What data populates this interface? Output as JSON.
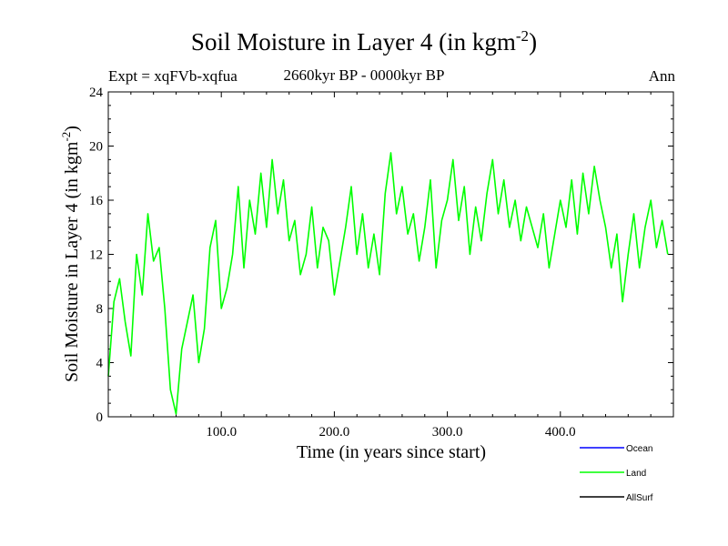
{
  "chart_data": {
    "type": "line",
    "title": "Soil Moisture in Layer 4 (in kgm",
    "title_superscript": "-2",
    "title_close": ")",
    "subtitle": "2660kyr BP - 0000kyr BP",
    "experiment_label": "Expt = xqFVb-xqfua",
    "season_label": "Ann",
    "xlabel": "Time (in years since start)",
    "ylabel": "Soil Moisture in Layer 4 (in kgm",
    "ylabel_superscript": "-2",
    "ylabel_close": ")",
    "xlim": [
      0,
      500
    ],
    "ylim": [
      0,
      24
    ],
    "x_ticks": [
      100,
      200,
      300,
      400
    ],
    "x_tick_labels": [
      "100.0",
      "200.0",
      "300.0",
      "400.0"
    ],
    "y_ticks": [
      0,
      4,
      8,
      12,
      16,
      20,
      24
    ],
    "y_tick_labels": [
      "0",
      "4",
      "8",
      "12",
      "16",
      "20",
      "24"
    ],
    "legend": [
      {
        "name": "Ocean",
        "color": "#0000ff"
      },
      {
        "name": "Land",
        "color": "#00ff00"
      },
      {
        "name": "AllSurf",
        "color": "#000000"
      }
    ],
    "series": [
      {
        "name": "Land",
        "color": "#00ff00",
        "x_start": 0,
        "x_step": 5,
        "values": [
          3.0,
          8.5,
          10.2,
          7.0,
          4.5,
          12.0,
          9.0,
          15.0,
          11.5,
          12.5,
          8.0,
          2.0,
          0.2,
          5.0,
          7.0,
          9.0,
          4.0,
          6.5,
          12.5,
          14.5,
          8.0,
          9.5,
          12.0,
          17.0,
          11.0,
          16.0,
          13.5,
          18.0,
          14.0,
          19.0,
          15.0,
          17.5,
          13.0,
          14.5,
          10.5,
          12.0,
          15.5,
          11.0,
          14.0,
          13.0,
          9.0,
          11.5,
          14.0,
          17.0,
          12.0,
          15.0,
          11.0,
          13.5,
          10.5,
          16.5,
          19.5,
          15.0,
          17.0,
          13.5,
          15.0,
          11.5,
          14.0,
          17.5,
          11.0,
          14.5,
          16.0,
          19.0,
          14.5,
          17.0,
          12.0,
          15.5,
          13.0,
          16.5,
          19.0,
          15.0,
          17.5,
          14.0,
          16.0,
          13.0,
          15.5,
          14.0,
          12.5,
          15.0,
          11.0,
          13.5,
          16.0,
          14.0,
          17.5,
          13.5,
          18.0,
          15.0,
          18.5,
          16.0,
          14.0,
          11.0,
          13.5,
          8.5,
          12.0,
          15.0,
          11.0,
          14.0,
          16.0,
          12.5,
          14.5,
          12.0
        ]
      }
    ]
  }
}
